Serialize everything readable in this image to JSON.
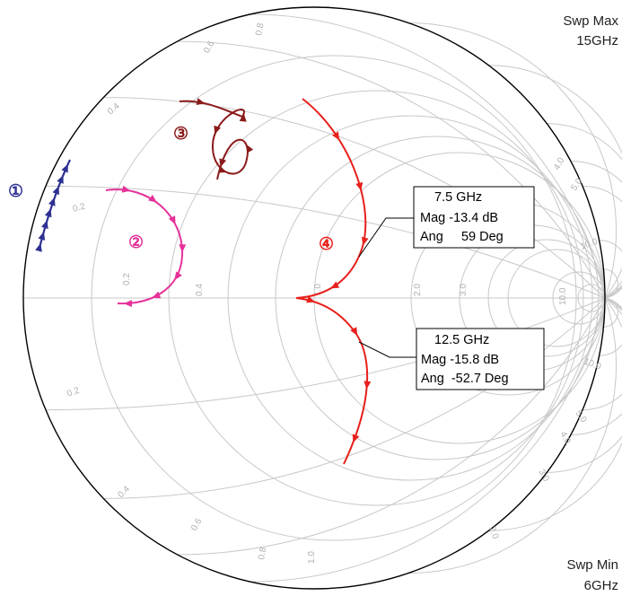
{
  "sweep": {
    "max_label": "Swp Max",
    "max_value": "15GHz",
    "min_label": "Swp Min",
    "min_value": "6GHz"
  },
  "tick_labels": {
    "resistance": [
      "0.2",
      "0.4",
      "1.0",
      "2.0",
      "3.0",
      "4.0",
      "10.0"
    ],
    "reactance": [
      "0.2",
      "0.4",
      "0.6",
      "0.8",
      "1.0",
      "2.0",
      "3.0",
      "4.0",
      "5.0",
      "10.0"
    ]
  },
  "markers": [
    {
      "freq": "7.5 GHz",
      "mag": "Mag  -13.4 dB",
      "ang": "Ang     59 Deg"
    },
    {
      "freq": "12.5 GHz",
      "mag": "Mag  -15.8 dB",
      "ang": "Ang  -52.7 Deg"
    }
  ],
  "traces": [
    {
      "label": "①",
      "color": "#2e3192"
    },
    {
      "label": "②",
      "color": "#e6309a"
    },
    {
      "label": "③",
      "color": "#8b1a1a"
    },
    {
      "label": "④",
      "color": "#e8201c"
    }
  ]
}
